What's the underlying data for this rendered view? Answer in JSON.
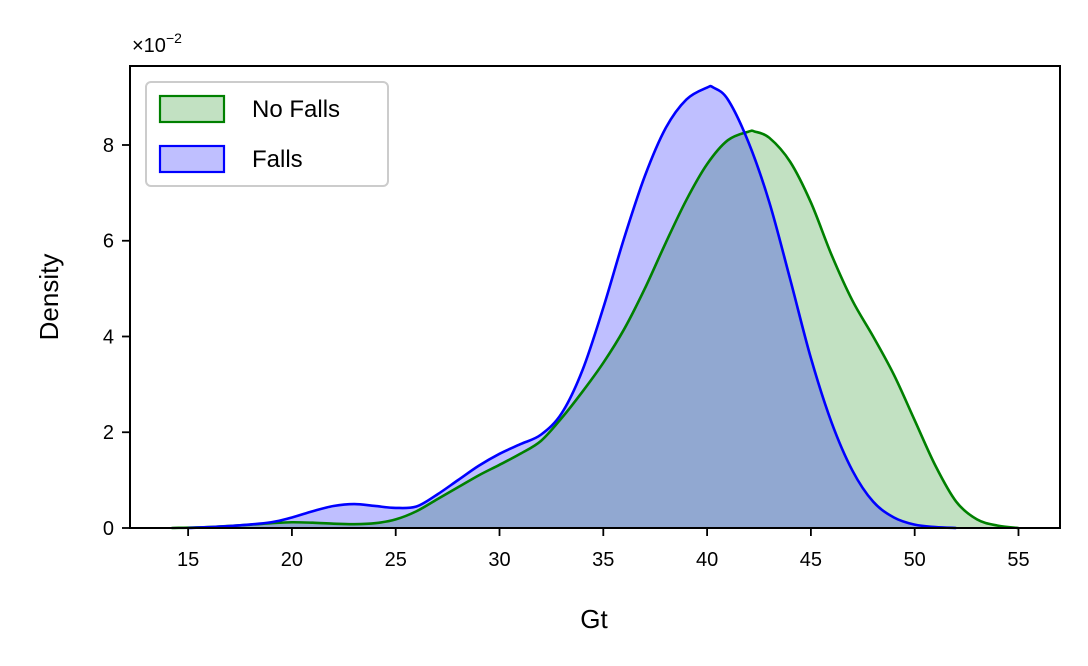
{
  "chart_data": {
    "type": "area",
    "xlabel": "Gt",
    "ylabel": "Density",
    "y_multiplier_label": "×10",
    "y_multiplier_exponent": "−2",
    "xlim": [
      12.2,
      57.0
    ],
    "ylim": [
      0,
      9.65
    ],
    "x_ticks": [
      15,
      20,
      25,
      30,
      35,
      40,
      45,
      50,
      55
    ],
    "y_ticks": [
      0,
      2,
      4,
      6,
      8
    ],
    "legend_position": "top-left",
    "grid": false,
    "series": [
      {
        "name": "No Falls",
        "line_color": "#008000",
        "fill_color": "#008000",
        "fill_opacity": 0.24,
        "x": [
          14.2,
          16,
          18,
          19,
          20,
          21,
          22,
          23,
          24,
          25,
          26,
          27,
          28,
          29,
          30,
          31,
          32,
          33,
          34,
          35,
          36,
          37,
          38,
          39,
          40,
          41,
          42,
          42.3,
          43,
          44,
          45,
          46,
          47,
          48,
          49,
          50,
          51,
          52,
          53,
          54,
          55
        ],
        "y": [
          0,
          0.02,
          0.07,
          0.1,
          0.12,
          0.11,
          0.09,
          0.08,
          0.1,
          0.18,
          0.35,
          0.6,
          0.85,
          1.1,
          1.32,
          1.55,
          1.82,
          2.3,
          2.85,
          3.45,
          4.15,
          5.0,
          5.95,
          6.85,
          7.6,
          8.1,
          8.28,
          8.28,
          8.15,
          7.65,
          6.8,
          5.7,
          4.75,
          4.0,
          3.2,
          2.25,
          1.3,
          0.55,
          0.18,
          0.05,
          0
        ]
      },
      {
        "name": "Falls",
        "line_color": "#0000ff",
        "fill_color": "#0000ff",
        "fill_opacity": 0.25,
        "x": [
          15,
          17,
          19,
          20,
          21,
          22,
          23,
          24,
          25,
          26,
          27,
          28,
          29,
          30,
          31,
          32,
          33,
          34,
          35,
          36,
          37,
          38,
          39,
          40,
          40.3,
          41,
          42,
          43,
          44,
          45,
          46,
          47,
          48,
          49,
          50,
          51,
          52
        ],
        "y": [
          0,
          0.04,
          0.12,
          0.22,
          0.35,
          0.46,
          0.5,
          0.46,
          0.42,
          0.45,
          0.7,
          1.0,
          1.3,
          1.55,
          1.75,
          1.95,
          2.4,
          3.3,
          4.6,
          6.05,
          7.35,
          8.35,
          8.95,
          9.2,
          9.2,
          8.95,
          8.05,
          6.8,
          5.2,
          3.55,
          2.2,
          1.2,
          0.55,
          0.22,
          0.07,
          0.02,
          0
        ]
      }
    ]
  }
}
